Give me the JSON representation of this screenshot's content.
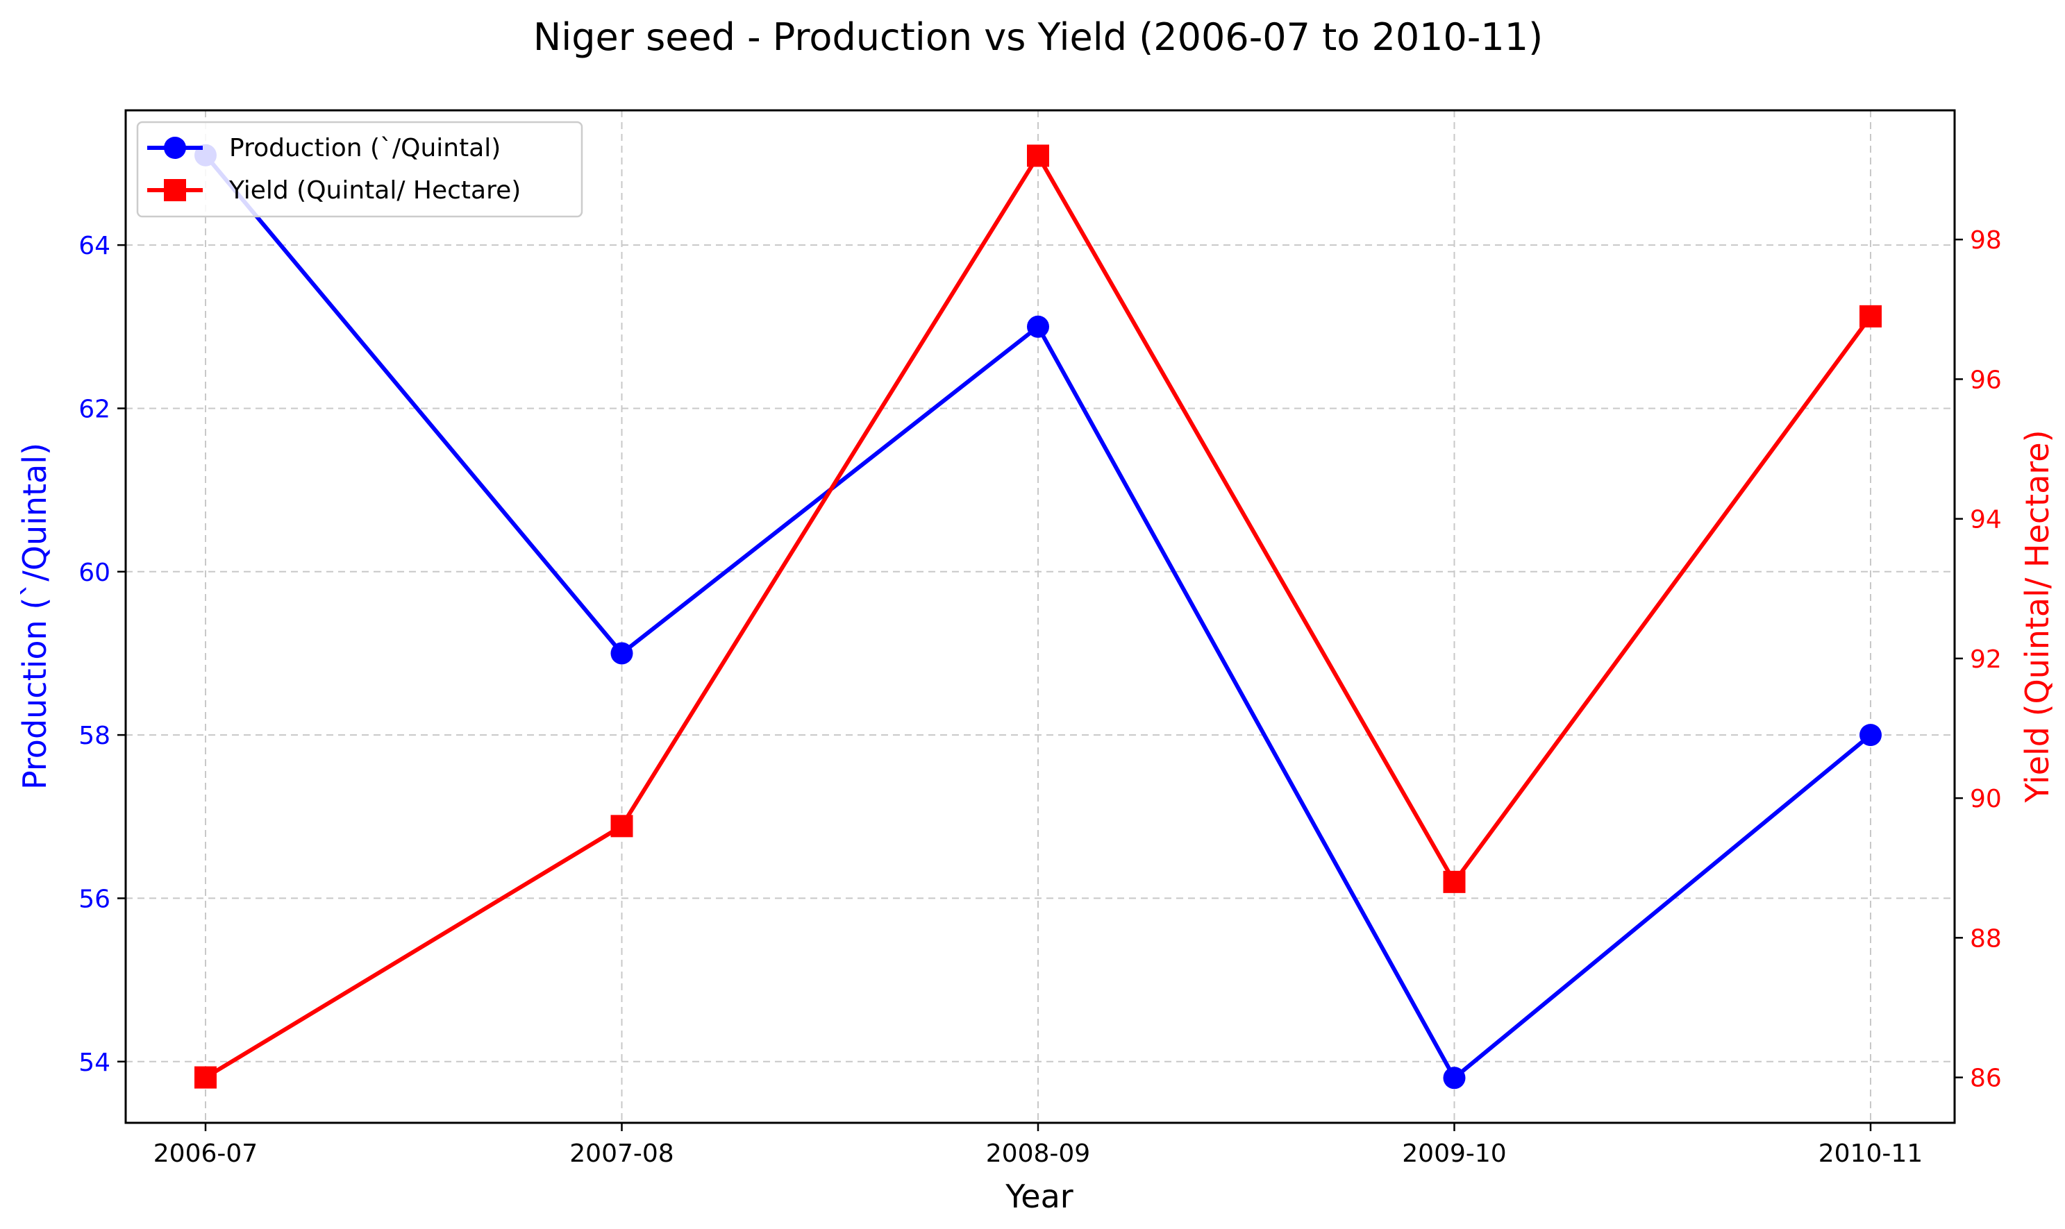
{
  "colors": {
    "production": "#0000ff",
    "yield": "#ff0000",
    "grid": "#c8c8c8",
    "axis": "#000000"
  },
  "chart_data": {
    "type": "line",
    "title": "Niger seed - Production vs Yield (2006-07 to 2010-11)",
    "xlabel": "Year",
    "categories": [
      "2006-07",
      "2007-08",
      "2008-09",
      "2009-10",
      "2010-11"
    ],
    "grid": true,
    "legend_position": "top-left",
    "y_left": {
      "label": "Production (`/Quintal)",
      "ticks": [
        54,
        56,
        58,
        60,
        62,
        64
      ],
      "ylim": [
        53.25,
        65.65
      ]
    },
    "y_right": {
      "label": "Yield (Quintal/ Hectare)",
      "ticks": [
        86,
        88,
        90,
        92,
        94,
        96,
        98
      ],
      "ylim": [
        85.35,
        99.85
      ]
    },
    "series": [
      {
        "name": "Production (`/Quintal)",
        "axis": "left",
        "marker": "circle",
        "values": [
          65.1,
          59.0,
          63.0,
          53.8,
          58.0
        ]
      },
      {
        "name": "Yield (Quintal/ Hectare)",
        "axis": "right",
        "marker": "square",
        "values": [
          86.0,
          89.6,
          99.2,
          88.8,
          96.9
        ]
      }
    ]
  }
}
